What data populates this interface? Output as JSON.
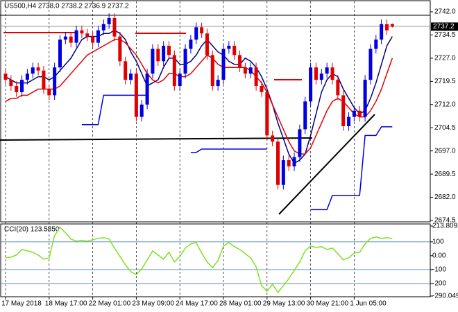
{
  "chart_data": [
    {
      "type": "candlestick",
      "title": "US500,H4  2738.0 2738.2 2736.9 2737.2",
      "categories": [
        "17 May 2018",
        null,
        null,
        null,
        null,
        null,
        null,
        null,
        "18 May 17:00",
        null,
        null,
        null,
        null,
        null,
        null,
        null,
        "22 May 01:00",
        null,
        null,
        null,
        null,
        null,
        null,
        null,
        "23 May 09:00",
        null,
        null,
        null,
        null,
        null,
        null,
        null,
        "24 May 17:00",
        null,
        null,
        null,
        null,
        null,
        null,
        null,
        "28 May 01:00",
        null,
        null,
        null,
        null,
        null,
        null,
        null,
        "29 May 13:00",
        null,
        null,
        null,
        null,
        null,
        null,
        null,
        "30 May 21:00",
        null,
        null,
        null,
        null,
        null,
        null,
        null,
        "1 Jun 05:00",
        null,
        null,
        null,
        null,
        null,
        null,
        null
      ],
      "open": [
        2722,
        2720,
        2718,
        2716,
        2720,
        2722,
        2724,
        2723,
        2717,
        2715,
        2724,
        2733,
        2734,
        2732,
        2736,
        2735,
        2734,
        2732,
        2736,
        2738,
        2740,
        2734,
        2726,
        2720,
        2722,
        2708,
        2712,
        2722,
        2730,
        2726,
        2731,
        2728,
        2718,
        2722,
        2730,
        2733,
        2737,
        2735,
        2728,
        2718,
        2720,
        2730,
        2731,
        2728,
        2724,
        2722,
        2724,
        2718,
        2716,
        2702,
        2700,
        2686,
        2694,
        2692,
        2695,
        2704,
        2713,
        2724,
        2720,
        2722,
        2724,
        2720,
        2715,
        2705,
        2708,
        2710,
        2708,
        2720,
        2730,
        2733,
        2738,
        2738.0
      ],
      "high": [
        2723.5,
        2721.5,
        2719.5,
        2721.5,
        2723.5,
        2725.5,
        2725.5,
        2724.5,
        2718.5,
        2725.5,
        2734.5,
        2735.5,
        2735.5,
        2737.5,
        2737.5,
        2736.5,
        2735.5,
        2737.5,
        2739.5,
        2741.5,
        2741.5,
        2735.5,
        2727.5,
        2723.5,
        2723.5,
        2713.5,
        2723.5,
        2731.5,
        2731.5,
        2732.5,
        2732.5,
        2729.5,
        2723.5,
        2731.5,
        2734.5,
        2738.5,
        2738.5,
        2736.5,
        2729.5,
        2721.5,
        2731.5,
        2732.5,
        2732.5,
        2729.5,
        2725.5,
        2725.5,
        2725.5,
        2719.5,
        2717.5,
        2703.5,
        2701.5,
        2695.5,
        2695.5,
        2696.5,
        2705.5,
        2714.5,
        2725.5,
        2725.5,
        2723.5,
        2725.5,
        2725.5,
        2721.5,
        2716.5,
        2709.5,
        2711.5,
        2711.5,
        2721.5,
        2731.5,
        2734.5,
        2739.5,
        2739.5,
        2738.2
      ],
      "low": [
        2718.5,
        2716.5,
        2714.5,
        2714.5,
        2718.5,
        2720.5,
        2721.5,
        2715.5,
        2713.5,
        2713.5,
        2722.5,
        2731.5,
        2730.5,
        2730.5,
        2733.5,
        2732.5,
        2730.5,
        2730.5,
        2734.5,
        2736.5,
        2732.5,
        2724.5,
        2718.5,
        2718.5,
        2706.5,
        2706.5,
        2710.5,
        2720.5,
        2724.5,
        2724.5,
        2726.5,
        2716.5,
        2716.5,
        2720.5,
        2728.5,
        2731.5,
        2733.5,
        2726.5,
        2716.5,
        2716.5,
        2718.5,
        2728.5,
        2726.5,
        2722.5,
        2720.5,
        2720.5,
        2716.5,
        2714.5,
        2700.5,
        2698.5,
        2684.5,
        2684.5,
        2690.5,
        2690.5,
        2693.5,
        2702.5,
        2711.5,
        2718.5,
        2718.5,
        2720.5,
        2718.5,
        2713.5,
        2703.5,
        2703.5,
        2706.5,
        2706.5,
        2706.5,
        2718.5,
        2728.5,
        2731.5,
        2734.5,
        2736.9
      ],
      "close": [
        2720,
        2718,
        2716,
        2720,
        2722,
        2724,
        2723,
        2717,
        2715,
        2724,
        2733,
        2734,
        2732,
        2736,
        2735,
        2734,
        2732,
        2736,
        2738,
        2740,
        2734,
        2726,
        2720,
        2722,
        2708,
        2712,
        2722,
        2730,
        2726,
        2731,
        2728,
        2718,
        2722,
        2730,
        2733,
        2737,
        2735,
        2728,
        2718,
        2720,
        2730,
        2731,
        2728,
        2724,
        2722,
        2724,
        2718,
        2716,
        2702,
        2700,
        2686,
        2694,
        2692,
        2695,
        2704,
        2713,
        2724,
        2720,
        2722,
        2724,
        2720,
        2715,
        2705,
        2708,
        2710,
        2708,
        2720,
        2730,
        2733,
        2738,
        2736,
        2737.2
      ],
      "up_color": "#0000e0",
      "down_color": "#e00000",
      "overlays": [
        {
          "color": "#000080",
          "values": [
            2721,
            2720,
            2719,
            2719,
            2719,
            2720,
            2721,
            2721,
            2720,
            2721,
            2723,
            2725,
            2727,
            2730,
            2733,
            2734,
            2734,
            2734,
            2735,
            2735,
            2736,
            2735,
            2733,
            2729,
            2726,
            2722,
            2718,
            2719,
            2720,
            2724,
            2727,
            2727,
            2725,
            2725,
            2726,
            2728,
            2731,
            2733,
            2731,
            2729,
            2728,
            2726,
            2725,
            2725,
            2727,
            2726,
            2724,
            2721,
            2717,
            2712,
            2706,
            2701,
            2696,
            2693,
            2694,
            2696,
            2702,
            2709,
            2716,
            2720,
            2722,
            2721,
            2717,
            2714,
            2711,
            2709,
            2710,
            2714,
            2719,
            2725,
            2731,
            2734
          ]
        },
        {
          "color": "#e00000",
          "values": [
            2713,
            2714,
            2714,
            2715,
            2715,
            2716,
            2717,
            2717,
            2717,
            2717,
            2718,
            2720,
            2722,
            2724,
            2726,
            2728,
            2729,
            2730,
            2731,
            2732,
            2733,
            2733,
            2732,
            2730,
            2728,
            2725,
            2722,
            2720,
            2719,
            2720,
            2722,
            2722,
            2721,
            2721,
            2722,
            2724,
            2726,
            2728,
            2727,
            2725,
            2724,
            2724,
            2724,
            2724,
            2724,
            2723,
            2721,
            2719,
            2716,
            2712,
            2708,
            2704,
            2700,
            2697,
            2696,
            2696,
            2698,
            2702,
            2706,
            2710,
            2713,
            2714,
            2713,
            2711,
            2709,
            2708,
            2708,
            2710,
            2713,
            2717,
            2722,
            2727
          ]
        },
        {
          "color": "#0000e0",
          "values": [
            null,
            null,
            null,
            null,
            null,
            null,
            null,
            null,
            null,
            null,
            null,
            null,
            null,
            null,
            2705.5,
            2705.5,
            2705.5,
            2705.5,
            2715,
            2715,
            2715,
            2715,
            2715,
            2715,
            2715,
            2715,
            2715,
            null,
            null,
            null,
            null,
            null,
            null,
            null,
            2696.5,
            2696.5,
            2697.6,
            2697.6,
            2697.6,
            2697.6,
            2697.6,
            2697.6,
            2697.6,
            2697.6,
            2697.6,
            2697.6,
            2697.6,
            2697.6,
            2697.6,
            null,
            null,
            null,
            null,
            null,
            null,
            null,
            2678,
            2678,
            2678,
            2678,
            2682.6,
            2682.6,
            2682.6,
            2682.6,
            2682.6,
            2682.6,
            2702,
            2702,
            2702,
            2704.8,
            2704.8,
            2704.8
          ]
        }
      ],
      "ylim": [
        2674.5,
        2742.0
      ],
      "yticks": [
        {
          "value": 2742.0,
          "label": "2742.0"
        },
        {
          "value": 2734.5,
          "label": "2734.5"
        },
        {
          "value": 2727.0,
          "label": "2727.0"
        },
        {
          "value": 2719.5,
          "label": "2719.5"
        },
        {
          "value": 2712.0,
          "label": "2712.0"
        },
        {
          "value": 2704.5,
          "label": "2704.5"
        },
        {
          "value": 2697.0,
          "label": "2697.0"
        },
        {
          "value": 2689.5,
          "label": "2689.5"
        },
        {
          "value": 2682.0,
          "label": "2682.0"
        },
        {
          "value": 2674.5,
          "label": "2674.5"
        }
      ],
      "last_price": 2737.2
    },
    {
      "type": "line",
      "title": "CCI(20) 123.5850",
      "color": "#7fe020",
      "values": [
        -15,
        -10,
        5,
        45,
        35,
        25,
        5,
        -25,
        -15,
        145,
        205,
        165,
        120,
        105,
        110,
        105,
        115,
        125,
        130,
        120,
        55,
        -5,
        -65,
        -115,
        -135,
        -95,
        -30,
        35,
        5,
        -25,
        25,
        -45,
        -5,
        55,
        85,
        95,
        20,
        -45,
        -85,
        -35,
        70,
        95,
        65,
        45,
        15,
        -15,
        -80,
        -215,
        -255,
        -205,
        -265,
        -215,
        -165,
        -105,
        -45,
        35,
        70,
        60,
        65,
        45,
        55,
        15,
        -30,
        -15,
        20,
        25,
        85,
        125,
        135,
        125,
        130,
        123.585
      ],
      "ylim": [
        -290.049,
        213.8092
      ],
      "yticks": [
        213.8092,
        100,
        {
          "value": 0,
          "label": "0.00"
        },
        -100,
        -200,
        -290.049
      ],
      "levels": [
        100,
        -100,
        -200
      ]
    }
  ]
}
